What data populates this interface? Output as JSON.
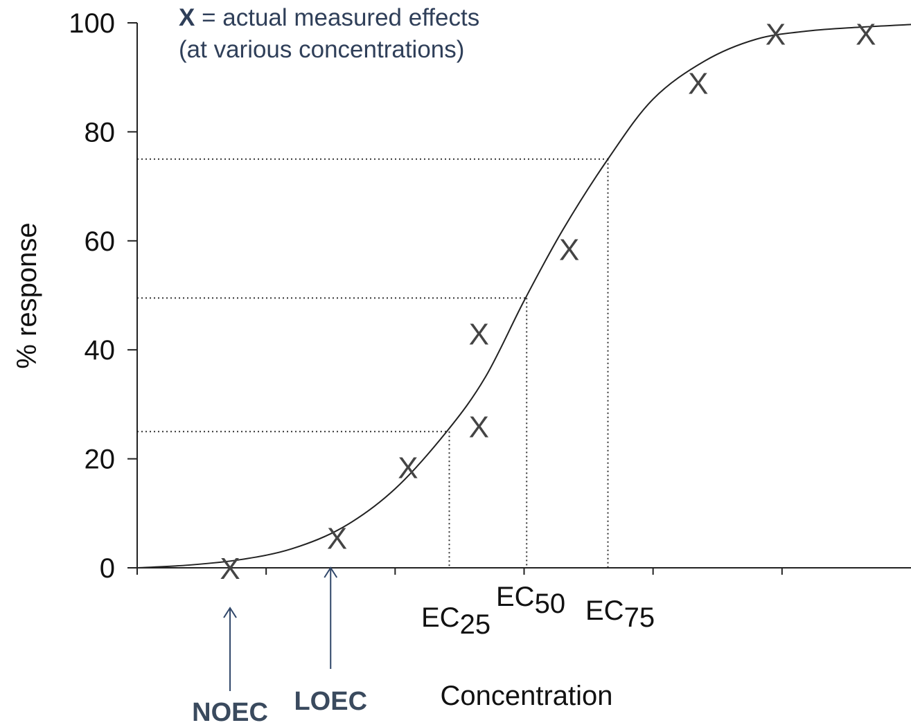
{
  "chart_data": {
    "type": "line",
    "xlabel": "Concentration",
    "ylabel": "% response",
    "ylim": [
      0,
      100
    ],
    "xlim": [
      0,
      6
    ],
    "yticks": [
      "0",
      "20",
      "40",
      "60",
      "80",
      "100"
    ],
    "grid": false,
    "legend": {
      "symbol": "X",
      "equals": " = ",
      "line1": "actual measured effects",
      "line2": "(at various concentrations)",
      "placement": "top-left"
    },
    "curve": {
      "name": "",
      "x": [
        0,
        0.4,
        0.8,
        1.2,
        1.6,
        2.0,
        2.4,
        2.7,
        3.0,
        3.3,
        3.65,
        4.0,
        4.4,
        4.8,
        5.2,
        5.6,
        6.0
      ],
      "y": [
        0,
        0.5,
        1.5,
        3.5,
        7.5,
        14.5,
        25,
        35,
        49,
        62,
        75,
        86,
        93,
        97,
        98.5,
        99.2,
        99.7
      ]
    },
    "points": {
      "marker": "X",
      "x": [
        0.72,
        1.55,
        2.1,
        2.65,
        2.65,
        3.35,
        4.35,
        4.95,
        5.65
      ],
      "y": [
        0,
        5.5,
        18.5,
        26,
        43,
        58.5,
        89,
        98,
        98
      ]
    },
    "effect_concentrations": [
      {
        "name": "EC",
        "sub": "25",
        "x": 2.42,
        "y": 25
      },
      {
        "name": "EC",
        "sub": "50",
        "x": 3.02,
        "y": 49.5
      },
      {
        "name": "EC",
        "sub": "75",
        "x": 3.65,
        "y": 75
      }
    ],
    "markers": [
      {
        "label": "NOEC",
        "x": 0.72
      },
      {
        "label": "LOEC",
        "x": 1.5
      }
    ],
    "colors": {
      "curve": "#222222",
      "points": "#444444",
      "marker_arrows": "#2f4669",
      "legend_text": "#2f3f59"
    }
  }
}
